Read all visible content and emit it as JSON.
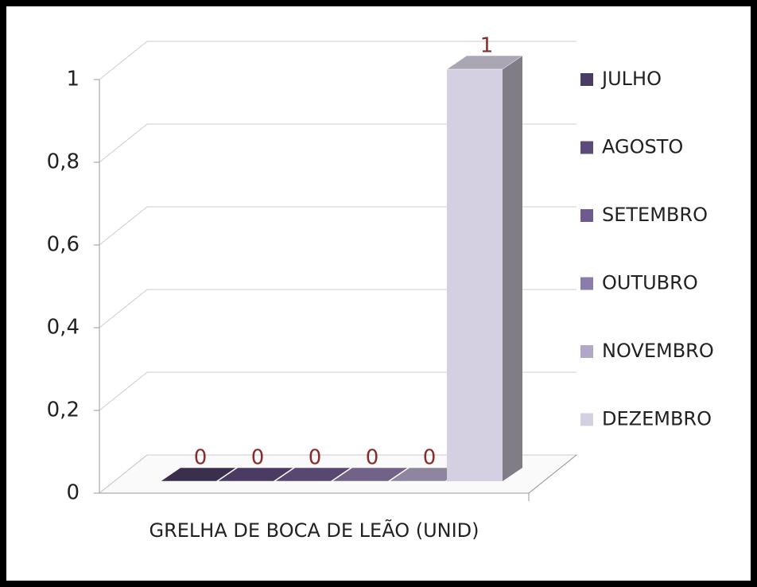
{
  "chart_data": {
    "type": "bar3d",
    "categories": [
      "GRELHA DE BOCA DE LEÃO (UNID)"
    ],
    "series": [
      {
        "name": "JULHO",
        "color": "#4a3b62",
        "values": [
          0
        ]
      },
      {
        "name": "AGOSTO",
        "color": "#5c4a7a",
        "values": [
          0
        ]
      },
      {
        "name": "SETEMBRO",
        "color": "#6d5a8f",
        "values": [
          0
        ]
      },
      {
        "name": "OUTUBRO",
        "color": "#8d7ca9",
        "values": [
          0
        ]
      },
      {
        "name": "NOVEMBRO",
        "color": "#b1a7c7",
        "values": [
          0
        ]
      },
      {
        "name": "DEZEMBRO",
        "color": "#d5d0e1",
        "values": [
          1
        ]
      }
    ],
    "ylim": [
      0,
      1
    ],
    "yticks": [
      0,
      {
        "value": 0.2,
        "label": "0,2"
      },
      {
        "value": 0.4,
        "label": "0,4"
      },
      {
        "value": 0.6,
        "label": "0,6"
      },
      {
        "value": 0.8,
        "label": "0,8"
      },
      1
    ],
    "grid": true,
    "legend": "right"
  }
}
